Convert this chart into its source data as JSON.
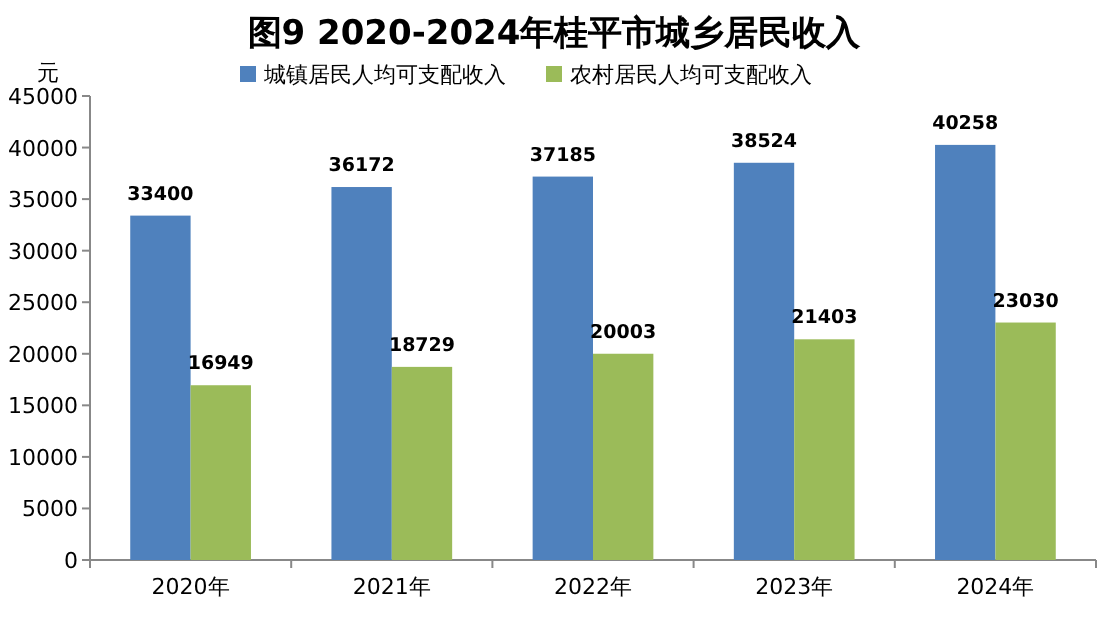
{
  "chart_data": {
    "type": "bar",
    "title": "图9 2020-2024年桂平市城乡居民收入",
    "ylabel": "元",
    "categories": [
      "2020年",
      "2021年",
      "2022年",
      "2023年",
      "2024年"
    ],
    "series": [
      {
        "name": "城镇居民人均可支配收入",
        "color": "#4f81bd",
        "values": [
          33400,
          36172,
          37185,
          38524,
          40258
        ]
      },
      {
        "name": "农村居民人均可支配收入",
        "color": "#9bbb59",
        "values": [
          16949,
          18729,
          20003,
          21403,
          23030
        ]
      }
    ],
    "ylim": [
      0,
      45000
    ],
    "yticks": [
      0,
      5000,
      10000,
      15000,
      20000,
      25000,
      30000,
      35000,
      40000,
      45000
    ],
    "data_labels": true,
    "legend": "top",
    "grid": false
  }
}
